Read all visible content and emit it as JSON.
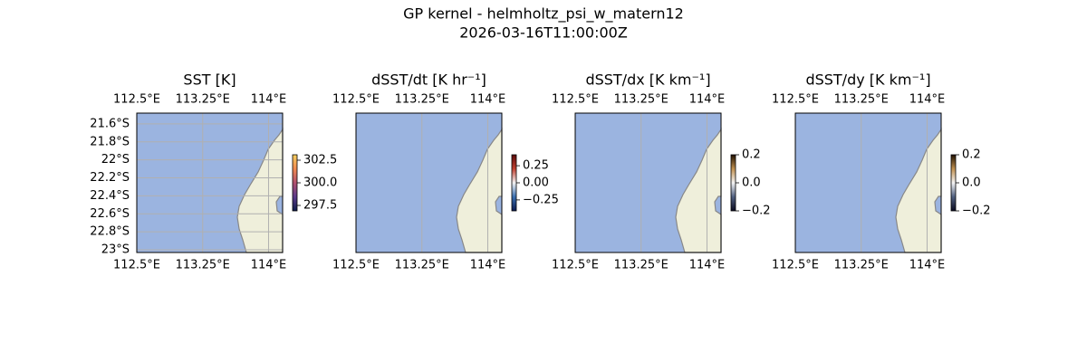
{
  "title": "GP kernel - helmholtz_psi_w_matern12",
  "subtitle": "2026-03-16T11:00:00Z",
  "chart_data": [
    {
      "type": "map",
      "title": "SST [K]",
      "ocean_color": "#9bb4e0",
      "land_color": "#efefdb",
      "xlim": [
        112.5,
        114.16
      ],
      "ylim": [
        -23.03,
        -21.48
      ],
      "xticks": [
        {
          "value": 112.5,
          "label": "112.5°E"
        },
        {
          "value": 113.25,
          "label": "113.25°E"
        },
        {
          "value": 114,
          "label": "114°E"
        }
      ],
      "yticks": [
        {
          "value": -21.6,
          "label": "21.6°S"
        },
        {
          "value": -21.8,
          "label": "21.8°S"
        },
        {
          "value": -22,
          "label": "22°S"
        },
        {
          "value": -22.2,
          "label": "22.2°S"
        },
        {
          "value": -22.4,
          "label": "22.4°S"
        },
        {
          "value": -22.6,
          "label": "22.6°S"
        },
        {
          "value": -22.8,
          "label": "22.8°S"
        },
        {
          "value": -23,
          "label": "23°S"
        }
      ],
      "colorbar": {
        "lim": [
          296.9,
          303.1
        ],
        "ticks": [
          302.5,
          {
            "value": 300,
            "label": "300.0"
          },
          297.5
        ],
        "colors": [
          "#0d1b4a",
          "#5b3a8a",
          "#b0506e",
          "#f08a50",
          "#f5d060"
        ]
      }
    },
    {
      "type": "map",
      "title": "dSST/dt [K hr⁻¹]",
      "ocean_color": "#9bb4e0",
      "land_color": "#efefdb",
      "xlim": [
        112.5,
        114.16
      ],
      "ylim": [
        -23.03,
        -21.48
      ],
      "xticks": [
        {
          "value": 112.5,
          "label": "112.5°E"
        },
        {
          "value": 113.25,
          "label": "113.25°E"
        },
        {
          "value": 114,
          "label": "114°E"
        }
      ],
      "colorbar": {
        "lim": [
          -0.41,
          0.41
        ],
        "ticks": [
          0.25,
          {
            "value": 0,
            "label": "0.00"
          },
          {
            "value": -0.25,
            "label": "−0.25"
          }
        ],
        "colors": [
          "#0a1a50",
          "#3a6fb0",
          "#f2f2f2",
          "#c04030",
          "#5a0a0a"
        ]
      }
    },
    {
      "type": "map",
      "title": "dSST/dx [K km⁻¹]",
      "ocean_color": "#9bb4e0",
      "land_color": "#efefdb",
      "xlim": [
        112.5,
        114.16
      ],
      "ylim": [
        -23.03,
        -21.48
      ],
      "xticks": [
        {
          "value": 112.5,
          "label": "112.5°E"
        },
        {
          "value": 113.25,
          "label": "113.25°E"
        },
        {
          "value": 114,
          "label": "114°E"
        }
      ],
      "colorbar": {
        "lim": [
          -0.2,
          0.2
        ],
        "ticks": [
          0.2,
          {
            "value": 0,
            "label": "0.0"
          },
          {
            "value": -0.2,
            "label": "−0.2"
          }
        ],
        "colors": [
          "#0a0a20",
          "#506080",
          "#f4f4f4",
          "#c09050",
          "#201000"
        ]
      }
    },
    {
      "type": "map",
      "title": "dSST/dy [K km⁻¹]",
      "ocean_color": "#9bb4e0",
      "land_color": "#efefdb",
      "xlim": [
        112.5,
        114.16
      ],
      "ylim": [
        -23.03,
        -21.48
      ],
      "xticks": [
        {
          "value": 112.5,
          "label": "112.5°E"
        },
        {
          "value": 113.25,
          "label": "113.25°E"
        },
        {
          "value": 114,
          "label": "114°E"
        }
      ],
      "colorbar": {
        "lim": [
          -0.2,
          0.2
        ],
        "ticks": [
          0.2,
          {
            "value": 0,
            "label": "0.0"
          },
          {
            "value": -0.2,
            "label": "−0.2"
          }
        ],
        "colors": [
          "#0a0a20",
          "#506080",
          "#f4f4f4",
          "#c09050",
          "#201000"
        ]
      }
    }
  ]
}
